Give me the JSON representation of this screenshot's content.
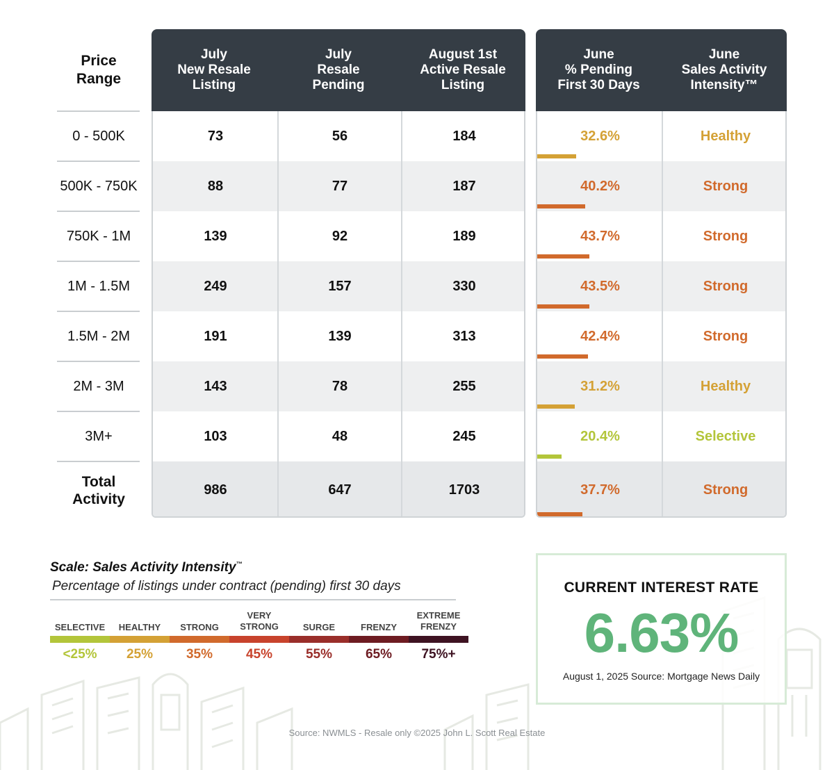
{
  "headers": {
    "price_range": "Price\nRange",
    "col1": "July\nNew Resale\nListing",
    "col2": "July\nResale\nPending",
    "col3": "August 1st\nActive Resale\nListing",
    "col4": "June\n% Pending\nFirst 30 Days",
    "col5": "June\nSales Activity\nIntensity™"
  },
  "rows": [
    {
      "range": "0 - 500K",
      "new_listing": "73",
      "pending": "56",
      "active": "184",
      "pct": "32.6%",
      "pct_value": 32.6,
      "intensity": "Healthy",
      "color": "#d4a135"
    },
    {
      "range": "500K - 750K",
      "new_listing": "88",
      "pending": "77",
      "active": "187",
      "pct": "40.2%",
      "pct_value": 40.2,
      "intensity": "Strong",
      "color": "#d16a2c"
    },
    {
      "range": "750K - 1M",
      "new_listing": "139",
      "pending": "92",
      "active": "189",
      "pct": "43.7%",
      "pct_value": 43.7,
      "intensity": "Strong",
      "color": "#d16a2c"
    },
    {
      "range": "1M - 1.5M",
      "new_listing": "249",
      "pending": "157",
      "active": "330",
      "pct": "43.5%",
      "pct_value": 43.5,
      "intensity": "Strong",
      "color": "#d16a2c"
    },
    {
      "range": "1.5M - 2M",
      "new_listing": "191",
      "pending": "139",
      "active": "313",
      "pct": "42.4%",
      "pct_value": 42.4,
      "intensity": "Strong",
      "color": "#d16a2c"
    },
    {
      "range": "2M - 3M",
      "new_listing": "143",
      "pending": "78",
      "active": "255",
      "pct": "31.2%",
      "pct_value": 31.2,
      "intensity": "Healthy",
      "color": "#d4a135"
    },
    {
      "range": "3M+",
      "new_listing": "103",
      "pending": "48",
      "active": "245",
      "pct": "20.4%",
      "pct_value": 20.4,
      "intensity": "Selective",
      "color": "#b3c53a"
    }
  ],
  "total": {
    "range": "Total\nActivity",
    "new_listing": "986",
    "pending": "647",
    "active": "1703",
    "pct": "37.7%",
    "pct_value": 37.7,
    "intensity": "Strong",
    "color": "#d16a2c"
  },
  "scale": {
    "title": "Scale: Sales Activity Intensity",
    "title_mark": "™",
    "subtitle": "Percentage of listings under contract (pending) first 30 days",
    "levels": [
      {
        "label": "SELECTIVE",
        "value": "<25%",
        "color": "#b3c53a"
      },
      {
        "label": "HEALTHY",
        "value": "25%",
        "color": "#d4a135"
      },
      {
        "label": "STRONG",
        "value": "35%",
        "color": "#d16a2c"
      },
      {
        "label": "VERY\nSTRONG",
        "value": "45%",
        "color": "#c8432c"
      },
      {
        "label": "SURGE",
        "value": "55%",
        "color": "#9a2e2a"
      },
      {
        "label": "FRENZY",
        "value": "65%",
        "color": "#6e1c22"
      },
      {
        "label": "EXTREME\nFRENZY",
        "value": "75%+",
        "color": "#3e1322"
      }
    ]
  },
  "interest": {
    "title": "CURRENT INTEREST RATE",
    "rate": "6.63%",
    "source": "August 1, 2025 Source: Mortgage News Daily"
  },
  "footer_source": "Source: NWMLS - Resale only ©2025 John L. Scott Real Estate"
}
